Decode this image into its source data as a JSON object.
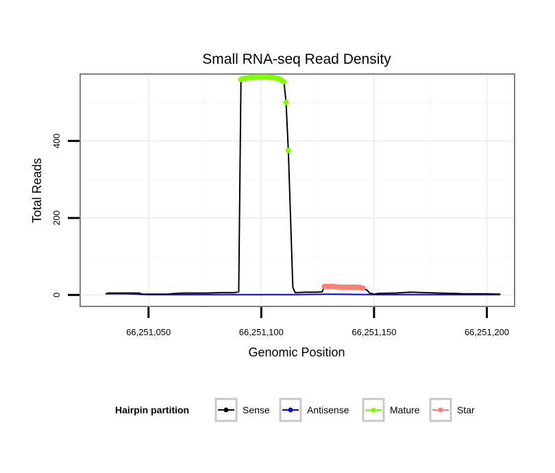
{
  "chart_data": {
    "type": "line",
    "title": "Small RNA-seq Read Density",
    "xlabel": "Genomic Position",
    "ylabel": "Total Reads",
    "xlim": [
      66251020,
      66251212
    ],
    "ylim": [
      -28,
      572
    ],
    "x_ticks": [
      66251050,
      66251100,
      66251150,
      66251200
    ],
    "x_tick_labels": [
      "66,251,050",
      "66,251,100",
      "66,251,150",
      "66,251,200"
    ],
    "y_ticks": [
      0,
      200,
      400
    ],
    "y_tick_labels": [
      "0",
      "200",
      "400"
    ],
    "grid": true,
    "legend": {
      "title": "Hairpin partition",
      "position": "bottom",
      "entries": [
        {
          "name": "Sense",
          "color": "#000000"
        },
        {
          "name": "Antisense",
          "color": "#0000ff"
        },
        {
          "name": "Mature",
          "color": "#7fff00"
        },
        {
          "name": "Star",
          "color": "#fa8072"
        }
      ]
    },
    "series": [
      {
        "name": "Sense",
        "color": "#000000",
        "style": "line",
        "points": [
          [
            66251031,
            2
          ],
          [
            66251032,
            5
          ],
          [
            66251038,
            5
          ],
          [
            66251046,
            5
          ],
          [
            66251047,
            2
          ],
          [
            66251058,
            2
          ],
          [
            66251062,
            4
          ],
          [
            66251066,
            5
          ],
          [
            66251076,
            5
          ],
          [
            66251082,
            6
          ],
          [
            66251088,
            6
          ],
          [
            66251090,
            8
          ],
          [
            66251091,
            560
          ],
          [
            66251092,
            563
          ],
          [
            66251095,
            565
          ],
          [
            66251100,
            566
          ],
          [
            66251105,
            565
          ],
          [
            66251108,
            563
          ],
          [
            66251110,
            556
          ],
          [
            66251111,
            500
          ],
          [
            66251112,
            375
          ],
          [
            66251114,
            20
          ],
          [
            66251115,
            6
          ],
          [
            66251120,
            7
          ],
          [
            66251124,
            7
          ],
          [
            66251127,
            8
          ],
          [
            66251128,
            22
          ],
          [
            66251130,
            22
          ],
          [
            66251135,
            20
          ],
          [
            66251140,
            20
          ],
          [
            66251145,
            18
          ],
          [
            66251147,
            12
          ],
          [
            66251148,
            5
          ],
          [
            66251150,
            2
          ],
          [
            66251152,
            4
          ],
          [
            66251160,
            5
          ],
          [
            66251166,
            7
          ],
          [
            66251172,
            6
          ],
          [
            66251178,
            5
          ],
          [
            66251185,
            4
          ],
          [
            66251190,
            3
          ],
          [
            66251200,
            3
          ],
          [
            66251206,
            2
          ]
        ]
      },
      {
        "name": "Antisense",
        "color": "#0000ff",
        "style": "line",
        "points": [
          [
            66251031,
            3
          ],
          [
            66251040,
            3
          ],
          [
            66251050,
            1
          ],
          [
            66251065,
            1
          ],
          [
            66251090,
            1
          ],
          [
            66251100,
            1
          ],
          [
            66251115,
            1
          ],
          [
            66251130,
            2
          ],
          [
            66251150,
            1
          ],
          [
            66251180,
            1
          ],
          [
            66251200,
            1
          ],
          [
            66251206,
            1
          ]
        ]
      },
      {
        "name": "Mature",
        "color": "#7fff00",
        "style": "points",
        "points": [
          [
            66251091,
            560
          ],
          [
            66251092,
            562
          ],
          [
            66251093,
            563
          ],
          [
            66251094,
            564
          ],
          [
            66251095,
            565
          ],
          [
            66251096,
            565
          ],
          [
            66251097,
            566
          ],
          [
            66251098,
            566
          ],
          [
            66251099,
            566
          ],
          [
            66251100,
            566
          ],
          [
            66251101,
            566
          ],
          [
            66251102,
            566
          ],
          [
            66251103,
            566
          ],
          [
            66251104,
            565
          ],
          [
            66251105,
            565
          ],
          [
            66251106,
            564
          ],
          [
            66251107,
            563
          ],
          [
            66251108,
            561
          ],
          [
            66251109,
            558
          ],
          [
            66251110,
            554
          ],
          [
            66251111,
            500
          ],
          [
            66251112,
            375
          ]
        ]
      },
      {
        "name": "Star",
        "color": "#fa8072",
        "style": "points",
        "points": [
          [
            66251128,
            22
          ],
          [
            66251129,
            22
          ],
          [
            66251130,
            22
          ],
          [
            66251131,
            22
          ],
          [
            66251132,
            22
          ],
          [
            66251133,
            21
          ],
          [
            66251134,
            21
          ],
          [
            66251135,
            20
          ],
          [
            66251136,
            20
          ],
          [
            66251137,
            20
          ],
          [
            66251138,
            20
          ],
          [
            66251139,
            20
          ],
          [
            66251140,
            20
          ],
          [
            66251141,
            20
          ],
          [
            66251142,
            20
          ],
          [
            66251143,
            20
          ],
          [
            66251144,
            19
          ],
          [
            66251145,
            18
          ]
        ]
      }
    ]
  }
}
